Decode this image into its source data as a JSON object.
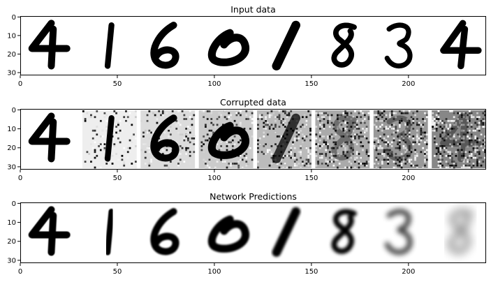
{
  "chart_data": [
    {
      "type": "image",
      "title": "Input data",
      "xlim": [
        0,
        240
      ],
      "ylim": [
        31.5,
        -0.5
      ],
      "xticks": [
        0,
        50,
        100,
        150,
        200
      ],
      "yticks": [
        0,
        10,
        20,
        30
      ],
      "panels": [
        {
          "digit": "4",
          "noise": 0.0,
          "blur": 0.0
        },
        {
          "digit": "1",
          "noise": 0.0,
          "blur": 0.0
        },
        {
          "digit": "6",
          "noise": 0.0,
          "blur": 0.0
        },
        {
          "digit": "0",
          "noise": 0.0,
          "blur": 0.0
        },
        {
          "digit": "1",
          "noise": 0.0,
          "blur": 0.0
        },
        {
          "digit": "8",
          "noise": 0.0,
          "blur": 0.0
        },
        {
          "digit": "3",
          "noise": 0.0,
          "blur": 0.0
        },
        {
          "digit": "4",
          "noise": 0.0,
          "blur": 0.0
        }
      ]
    },
    {
      "type": "image",
      "title": "Corrupted data",
      "xlim": [
        0,
        240
      ],
      "ylim": [
        31.5,
        -0.5
      ],
      "xticks": [
        0,
        50,
        100,
        150,
        200
      ],
      "yticks": [
        0,
        10,
        20,
        30
      ],
      "panels": [
        {
          "digit": "4",
          "noise": 0.0,
          "blur": 0.0
        },
        {
          "digit": "1",
          "noise": 0.14,
          "blur": 0.0
        },
        {
          "digit": "6",
          "noise": 0.29,
          "blur": 0.0
        },
        {
          "digit": "0",
          "noise": 0.43,
          "blur": 0.0
        },
        {
          "digit": "1",
          "noise": 0.57,
          "blur": 0.0
        },
        {
          "digit": "8",
          "noise": 0.71,
          "blur": 0.0
        },
        {
          "digit": "3",
          "noise": 0.86,
          "blur": 0.0
        },
        {
          "digit": "4",
          "noise": 1.0,
          "blur": 0.0
        }
      ]
    },
    {
      "type": "image",
      "title": "Network Predictions",
      "xlim": [
        0,
        240
      ],
      "ylim": [
        31.5,
        -0.5
      ],
      "xticks": [
        0,
        50,
        100,
        150,
        200
      ],
      "yticks": [
        0,
        10,
        20,
        30
      ],
      "panels": [
        {
          "digit": "4",
          "noise": 0.0,
          "blur": 0.2
        },
        {
          "digit": "1",
          "noise": 0.0,
          "blur": 0.3
        },
        {
          "digit": "6",
          "noise": 0.0,
          "blur": 0.4
        },
        {
          "digit": "0",
          "noise": 0.0,
          "blur": 0.5
        },
        {
          "digit": "1",
          "noise": 0.0,
          "blur": 0.7
        },
        {
          "digit": "8",
          "noise": 0.0,
          "blur": 0.9
        },
        {
          "digit": "3",
          "noise": 0.0,
          "blur": 1.3
        },
        {
          "digit": "8",
          "noise": 0.0,
          "blur": 2.4
        }
      ]
    }
  ]
}
